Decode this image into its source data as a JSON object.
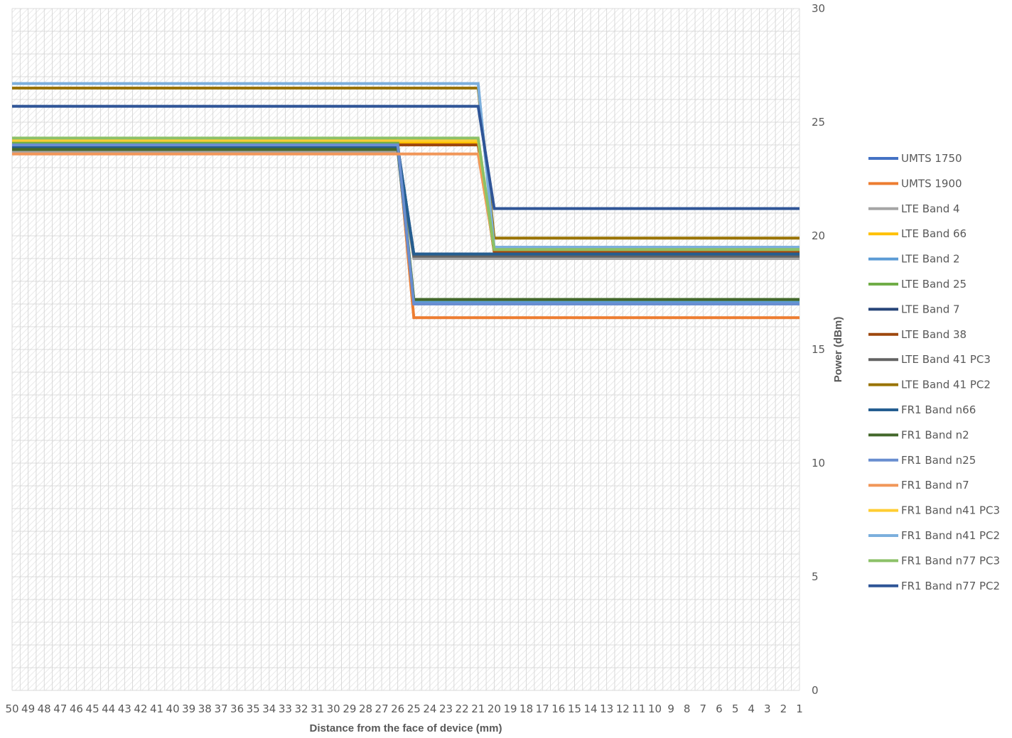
{
  "chart_data": {
    "type": "line",
    "title": "",
    "xlabel": "Distance from the face of device (mm)",
    "ylabel": "Power (dBm)",
    "x_ticks": [
      50,
      49,
      48,
      47,
      46,
      45,
      44,
      43,
      42,
      41,
      40,
      39,
      38,
      37,
      36,
      35,
      34,
      33,
      32,
      31,
      30,
      29,
      28,
      27,
      26,
      25,
      24,
      23,
      22,
      21,
      20,
      19,
      18,
      17,
      16,
      15,
      14,
      13,
      12,
      11,
      10,
      9,
      8,
      7,
      6,
      5,
      4,
      3,
      2,
      1
    ],
    "xlim": [
      50,
      1
    ],
    "x_reversed": true,
    "ylim": [
      0,
      30
    ],
    "y_ticks": [
      0,
      5,
      10,
      15,
      20,
      25,
      30
    ],
    "y_axis_position": "right",
    "grid": true,
    "legend_position": "right",
    "series": [
      {
        "name": "UMTS 1750",
        "color": "#4472C4",
        "points": [
          [
            50,
            23.8
          ],
          [
            26,
            23.8
          ],
          [
            25,
            17.0
          ],
          [
            1,
            17.0
          ]
        ]
      },
      {
        "name": "UMTS 1900",
        "color": "#ED7D31",
        "points": [
          [
            50,
            24.0
          ],
          [
            26,
            24.0
          ],
          [
            25,
            16.4
          ],
          [
            1,
            16.4
          ]
        ]
      },
      {
        "name": "LTE Band 4",
        "color": "#A5A5A5",
        "points": [
          [
            50,
            23.7
          ],
          [
            26,
            23.7
          ],
          [
            25,
            19.0
          ],
          [
            1,
            19.0
          ]
        ]
      },
      {
        "name": "LTE Band 66",
        "color": "#FFC000",
        "points": [
          [
            50,
            24.1
          ],
          [
            21,
            24.1
          ],
          [
            20,
            19.3
          ],
          [
            1,
            19.3
          ]
        ]
      },
      {
        "name": "LTE Band 2",
        "color": "#5B9BD5",
        "points": [
          [
            50,
            23.9
          ],
          [
            26,
            23.9
          ],
          [
            25,
            17.1
          ],
          [
            1,
            17.1
          ]
        ]
      },
      {
        "name": "LTE Band 25",
        "color": "#70AD47",
        "points": [
          [
            50,
            24.1
          ],
          [
            26,
            24.1
          ],
          [
            25,
            17.2
          ],
          [
            1,
            17.2
          ]
        ]
      },
      {
        "name": "LTE Band 7",
        "color": "#264478",
        "points": [
          [
            50,
            23.9
          ],
          [
            26,
            23.9
          ],
          [
            25,
            19.2
          ],
          [
            1,
            19.2
          ]
        ]
      },
      {
        "name": "LTE Band 38",
        "color": "#9E480E",
        "points": [
          [
            50,
            24.0
          ],
          [
            21,
            24.0
          ],
          [
            20,
            19.3
          ],
          [
            1,
            19.3
          ]
        ]
      },
      {
        "name": "LTE Band 41 PC3",
        "color": "#636363",
        "points": [
          [
            50,
            23.8
          ],
          [
            26,
            23.8
          ],
          [
            25,
            19.1
          ],
          [
            1,
            19.1
          ]
        ]
      },
      {
        "name": "LTE Band 41 PC2",
        "color": "#997300",
        "points": [
          [
            50,
            26.5
          ],
          [
            21,
            26.5
          ],
          [
            20,
            19.9
          ],
          [
            1,
            19.9
          ]
        ]
      },
      {
        "name": "FR1 Band n66",
        "color": "#255E91",
        "points": [
          [
            50,
            23.9
          ],
          [
            26,
            23.9
          ],
          [
            25,
            19.2
          ],
          [
            1,
            19.2
          ]
        ]
      },
      {
        "name": "FR1 Band n2",
        "color": "#43682B",
        "points": [
          [
            50,
            23.8
          ],
          [
            26,
            23.8
          ],
          [
            25,
            17.2
          ],
          [
            1,
            17.2
          ]
        ]
      },
      {
        "name": "FR1 Band n25",
        "color": "#698ED0",
        "points": [
          [
            50,
            24.0
          ],
          [
            26,
            24.0
          ],
          [
            25,
            17.0
          ],
          [
            1,
            17.0
          ]
        ]
      },
      {
        "name": "FR1 Band n7",
        "color": "#F1975A",
        "points": [
          [
            50,
            23.6
          ],
          [
            21,
            23.6
          ],
          [
            20,
            19.4
          ],
          [
            1,
            19.4
          ]
        ]
      },
      {
        "name": "FR1 Band n41 PC3",
        "color": "#FFCD33",
        "points": [
          [
            50,
            24.2
          ],
          [
            21,
            24.2
          ],
          [
            20,
            19.4
          ],
          [
            1,
            19.4
          ]
        ]
      },
      {
        "name": "FR1 Band n41 PC2",
        "color": "#7CAFDD",
        "points": [
          [
            50,
            26.7
          ],
          [
            21,
            26.7
          ],
          [
            20,
            19.5
          ],
          [
            1,
            19.5
          ]
        ]
      },
      {
        "name": "FR1 Band n77 PC3",
        "color": "#8CC168",
        "points": [
          [
            50,
            24.3
          ],
          [
            21,
            24.3
          ],
          [
            20,
            19.4
          ],
          [
            1,
            19.4
          ]
        ]
      },
      {
        "name": "FR1 Band n77 PC2",
        "color": "#2F5597",
        "points": [
          [
            50,
            25.7
          ],
          [
            21,
            25.7
          ],
          [
            20,
            21.2
          ],
          [
            1,
            21.2
          ]
        ]
      }
    ]
  }
}
